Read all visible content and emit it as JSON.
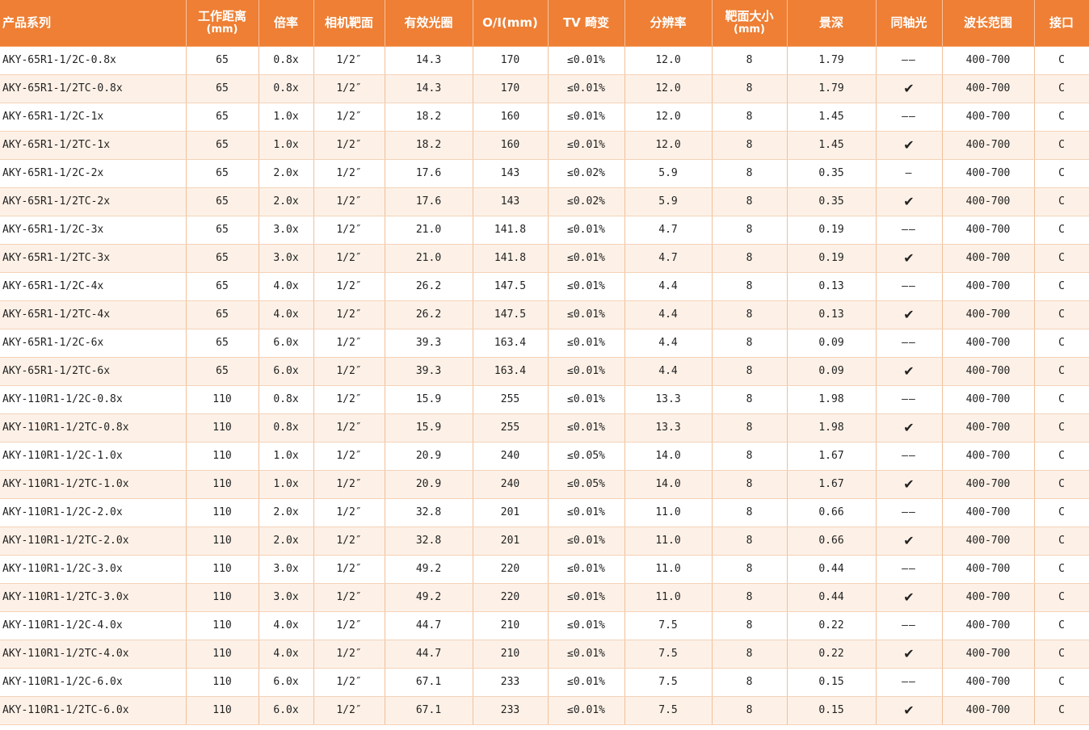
{
  "headers": [
    {
      "label": "产品系列",
      "sub": ""
    },
    {
      "label": "工作距离",
      "sub": "(mm)"
    },
    {
      "label": "倍率",
      "sub": ""
    },
    {
      "label": "相机靶面",
      "sub": ""
    },
    {
      "label": "有效光圈",
      "sub": ""
    },
    {
      "label": "O/I(mm)",
      "sub": ""
    },
    {
      "label": "TV 畸变",
      "sub": ""
    },
    {
      "label": "分辨率",
      "sub": ""
    },
    {
      "label": "靶面大小",
      "sub": "(mm)"
    },
    {
      "label": "景深",
      "sub": ""
    },
    {
      "label": "同轴光",
      "sub": ""
    },
    {
      "label": "波长范围",
      "sub": ""
    },
    {
      "label": "接口",
      "sub": ""
    }
  ],
  "colors": {
    "header_bg": "#ee7f34",
    "header_text": "#ffffff",
    "stripe": "#fdf1e7"
  },
  "rows": [
    [
      "AKY-65R1-1/2C-0.8x",
      "65",
      "0.8x",
      "1/2″",
      "14.3",
      "170",
      "≤0.01%",
      "12.0",
      "8",
      "1.79",
      "——",
      "400-700",
      "C"
    ],
    [
      "AKY-65R1-1/2TC-0.8x",
      "65",
      "0.8x",
      "1/2″",
      "14.3",
      "170",
      "≤0.01%",
      "12.0",
      "8",
      "1.79",
      "✔",
      "400-700",
      "C"
    ],
    [
      "AKY-65R1-1/2C-1x",
      "65",
      "1.0x",
      "1/2″",
      "18.2",
      "160",
      "≤0.01%",
      "12.0",
      "8",
      "1.45",
      "——",
      "400-700",
      "C"
    ],
    [
      "AKY-65R1-1/2TC-1x",
      "65",
      "1.0x",
      "1/2″",
      "18.2",
      "160",
      "≤0.01%",
      "12.0",
      "8",
      "1.45",
      "✔",
      "400-700",
      "C"
    ],
    [
      "AKY-65R1-1/2C-2x",
      "65",
      "2.0x",
      "1/2″",
      "17.6",
      "143",
      "≤0.02%",
      "5.9",
      "8",
      "0.35",
      "—",
      "400-700",
      "C"
    ],
    [
      "AKY-65R1-1/2TC-2x",
      "65",
      "2.0x",
      "1/2″",
      "17.6",
      "143",
      "≤0.02%",
      "5.9",
      "8",
      "0.35",
      "✔",
      "400-700",
      "C"
    ],
    [
      "AKY-65R1-1/2C-3x",
      "65",
      "3.0x",
      "1/2″",
      "21.0",
      "141.8",
      "≤0.01%",
      "4.7",
      "8",
      "0.19",
      "——",
      "400-700",
      "C"
    ],
    [
      "AKY-65R1-1/2TC-3x",
      "65",
      "3.0x",
      "1/2″",
      "21.0",
      "141.8",
      "≤0.01%",
      "4.7",
      "8",
      "0.19",
      "✔",
      "400-700",
      "C"
    ],
    [
      "AKY-65R1-1/2C-4x",
      "65",
      "4.0x",
      "1/2″",
      "26.2",
      "147.5",
      "≤0.01%",
      "4.4",
      "8",
      "0.13",
      "——",
      "400-700",
      "C"
    ],
    [
      "AKY-65R1-1/2TC-4x",
      "65",
      "4.0x",
      "1/2″",
      "26.2",
      "147.5",
      "≤0.01%",
      "4.4",
      "8",
      "0.13",
      "✔",
      "400-700",
      "C"
    ],
    [
      "AKY-65R1-1/2C-6x",
      "65",
      "6.0x",
      "1/2″",
      "39.3",
      "163.4",
      "≤0.01%",
      "4.4",
      "8",
      "0.09",
      "——",
      "400-700",
      "C"
    ],
    [
      "AKY-65R1-1/2TC-6x",
      "65",
      "6.0x",
      "1/2″",
      "39.3",
      "163.4",
      "≤0.01%",
      "4.4",
      "8",
      "0.09",
      "✔",
      "400-700",
      "C"
    ],
    [
      "AKY-110R1-1/2C-0.8x",
      "110",
      "0.8x",
      "1/2″",
      "15.9",
      "255",
      "≤0.01%",
      "13.3",
      "8",
      "1.98",
      "——",
      "400-700",
      "C"
    ],
    [
      "AKY-110R1-1/2TC-0.8x",
      "110",
      "0.8x",
      "1/2″",
      "15.9",
      "255",
      "≤0.01%",
      "13.3",
      "8",
      "1.98",
      "✔",
      "400-700",
      "C"
    ],
    [
      "AKY-110R1-1/2C-1.0x",
      "110",
      "1.0x",
      "1/2″",
      "20.9",
      "240",
      "≤0.05%",
      "14.0",
      "8",
      "1.67",
      "——",
      "400-700",
      "C"
    ],
    [
      "AKY-110R1-1/2TC-1.0x",
      "110",
      "1.0x",
      "1/2″",
      "20.9",
      "240",
      "≤0.05%",
      "14.0",
      "8",
      "1.67",
      "✔",
      "400-700",
      "C"
    ],
    [
      "AKY-110R1-1/2C-2.0x",
      "110",
      "2.0x",
      "1/2″",
      "32.8",
      "201",
      "≤0.01%",
      "11.0",
      "8",
      "0.66",
      "——",
      "400-700",
      "C"
    ],
    [
      "AKY-110R1-1/2TC-2.0x",
      "110",
      "2.0x",
      "1/2″",
      "32.8",
      "201",
      "≤0.01%",
      "11.0",
      "8",
      "0.66",
      "✔",
      "400-700",
      "C"
    ],
    [
      "AKY-110R1-1/2C-3.0x",
      "110",
      "3.0x",
      "1/2″",
      "49.2",
      "220",
      "≤0.01%",
      "11.0",
      "8",
      "0.44",
      "——",
      "400-700",
      "C"
    ],
    [
      "AKY-110R1-1/2TC-3.0x",
      "110",
      "3.0x",
      "1/2″",
      "49.2",
      "220",
      "≤0.01%",
      "11.0",
      "8",
      "0.44",
      "✔",
      "400-700",
      "C"
    ],
    [
      "AKY-110R1-1/2C-4.0x",
      "110",
      "4.0x",
      "1/2″",
      "44.7",
      "210",
      "≤0.01%",
      "7.5",
      "8",
      "0.22",
      "——",
      "400-700",
      "C"
    ],
    [
      "AKY-110R1-1/2TC-4.0x",
      "110",
      "4.0x",
      "1/2″",
      "44.7",
      "210",
      "≤0.01%",
      "7.5",
      "8",
      "0.22",
      "✔",
      "400-700",
      "C"
    ],
    [
      "AKY-110R1-1/2C-6.0x",
      "110",
      "6.0x",
      "1/2″",
      "67.1",
      "233",
      "≤0.01%",
      "7.5",
      "8",
      "0.15",
      "——",
      "400-700",
      "C"
    ],
    [
      "AKY-110R1-1/2TC-6.0x",
      "110",
      "6.0x",
      "1/2″",
      "67.1",
      "233",
      "≤0.01%",
      "7.5",
      "8",
      "0.15",
      "✔",
      "400-700",
      "C"
    ]
  ]
}
